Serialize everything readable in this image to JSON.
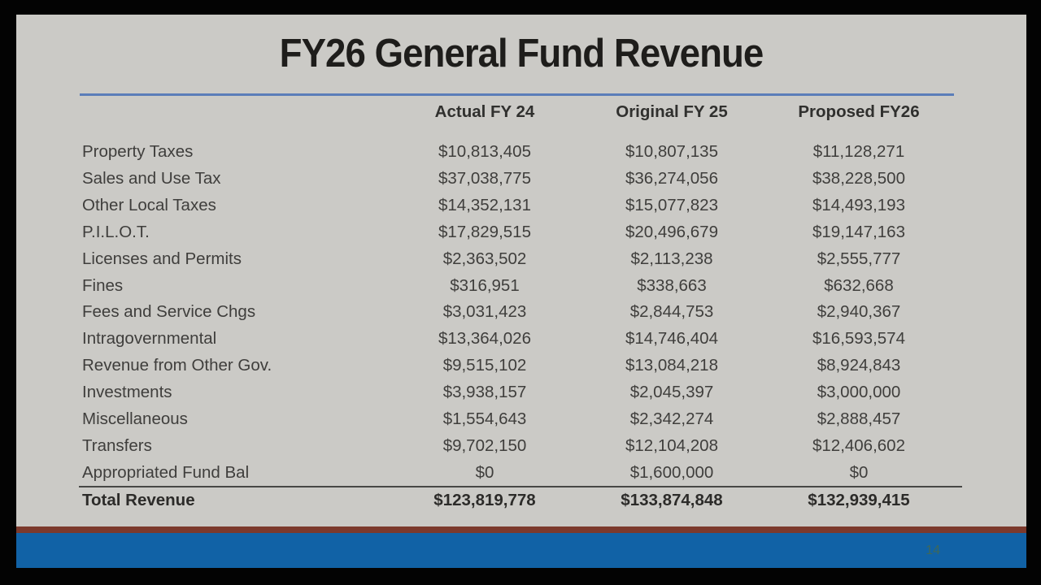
{
  "slide": {
    "title": "FY26 General Fund Revenue",
    "page_number": "14",
    "colors": {
      "slide_background": "#cbcac6",
      "title_text": "#1e1d1b",
      "body_text": "#3f3e3c",
      "title_rule_blue": "#5b7db9",
      "footer_maroon": "#7c392c",
      "footer_blue": "#1162a6",
      "page_number_text": "#3e685a"
    },
    "table": {
      "columns": [
        "Actual FY 24",
        "Original FY 25",
        "Proposed FY26"
      ],
      "rows": [
        {
          "label": "Property Taxes",
          "values": [
            "$10,813,405",
            "$10,807,135",
            "$11,128,271"
          ]
        },
        {
          "label": "Sales and Use Tax",
          "values": [
            "$37,038,775",
            "$36,274,056",
            "$38,228,500"
          ]
        },
        {
          "label": "Other Local Taxes",
          "values": [
            "$14,352,131",
            "$15,077,823",
            "$14,493,193"
          ]
        },
        {
          "label": "P.I.L.O.T.",
          "values": [
            "$17,829,515",
            "$20,496,679",
            "$19,147,163"
          ]
        },
        {
          "label": "Licenses and Permits",
          "values": [
            "$2,363,502",
            "$2,113,238",
            "$2,555,777"
          ]
        },
        {
          "label": "Fines",
          "values": [
            "$316,951",
            "$338,663",
            "$632,668"
          ]
        },
        {
          "label": "Fees and Service Chgs",
          "values": [
            "$3,031,423",
            "$2,844,753",
            "$2,940,367"
          ]
        },
        {
          "label": "Intragovernmental",
          "values": [
            "$13,364,026",
            "$14,746,404",
            "$16,593,574"
          ]
        },
        {
          "label": "Revenue from Other Gov.",
          "values": [
            "$9,515,102",
            "$13,084,218",
            "$8,924,843"
          ]
        },
        {
          "label": "Investments",
          "values": [
            "$3,938,157",
            "$2,045,397",
            "$3,000,000"
          ]
        },
        {
          "label": "Miscellaneous",
          "values": [
            "$1,554,643",
            "$2,342,274",
            "$2,888,457"
          ]
        },
        {
          "label": "Transfers",
          "values": [
            "$9,702,150",
            "$12,104,208",
            "$12,406,602"
          ]
        },
        {
          "label": "Appropriated Fund Bal",
          "values": [
            "$0",
            "$1,600,000",
            "$0"
          ]
        }
      ],
      "total": {
        "label": "Total Revenue",
        "values": [
          "$123,819,778",
          "$133,874,848",
          "$132,939,415"
        ]
      }
    }
  }
}
